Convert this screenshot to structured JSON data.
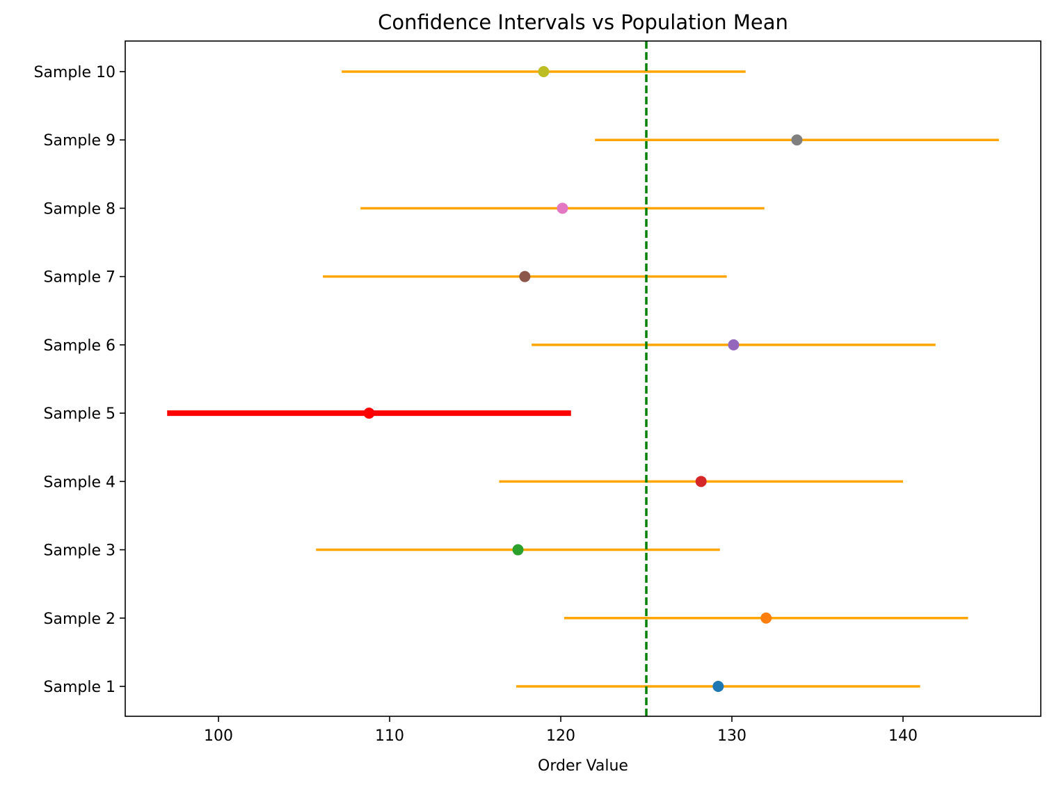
{
  "chart_data": {
    "type": "errorbar",
    "title": "Confidence Intervals vs Population Mean",
    "xlabel": "Order Value",
    "ylabel": "",
    "xlim": [
      94.55,
      148.05
    ],
    "xticks": [
      100,
      110,
      120,
      130,
      140
    ],
    "population_mean": 125.0,
    "population_mean_color": "#008000",
    "interval_color": "#ffa500",
    "miss_color": "#ff0000",
    "series": [
      {
        "name": "Sample 1",
        "mean": 129.2,
        "lower": 117.4,
        "upper": 141.0,
        "color": "#1f77b4",
        "contains_mean": true
      },
      {
        "name": "Sample 2",
        "mean": 132.0,
        "lower": 120.2,
        "upper": 143.8,
        "color": "#ff7f0e",
        "contains_mean": true
      },
      {
        "name": "Sample 3",
        "mean": 117.5,
        "lower": 105.7,
        "upper": 129.3,
        "color": "#2ca02c",
        "contains_mean": true
      },
      {
        "name": "Sample 4",
        "mean": 128.2,
        "lower": 116.4,
        "upper": 140.0,
        "color": "#d62728",
        "contains_mean": true
      },
      {
        "name": "Sample 5",
        "mean": 108.8,
        "lower": 97.0,
        "upper": 120.6,
        "color": "#ff0000",
        "contains_mean": false
      },
      {
        "name": "Sample 6",
        "mean": 130.1,
        "lower": 118.3,
        "upper": 141.9,
        "color": "#9467bd",
        "contains_mean": true
      },
      {
        "name": "Sample 7",
        "mean": 117.9,
        "lower": 106.1,
        "upper": 129.7,
        "color": "#8c564b",
        "contains_mean": true
      },
      {
        "name": "Sample 8",
        "mean": 120.1,
        "lower": 108.3,
        "upper": 131.9,
        "color": "#e377c2",
        "contains_mean": true
      },
      {
        "name": "Sample 9",
        "mean": 133.8,
        "lower": 122.0,
        "upper": 145.6,
        "color": "#7f7f7f",
        "contains_mean": true
      },
      {
        "name": "Sample 10",
        "mean": 119.0,
        "lower": 107.2,
        "upper": 130.8,
        "color": "#bcbd22",
        "contains_mean": true
      }
    ],
    "grid": false,
    "legend": "none"
  }
}
